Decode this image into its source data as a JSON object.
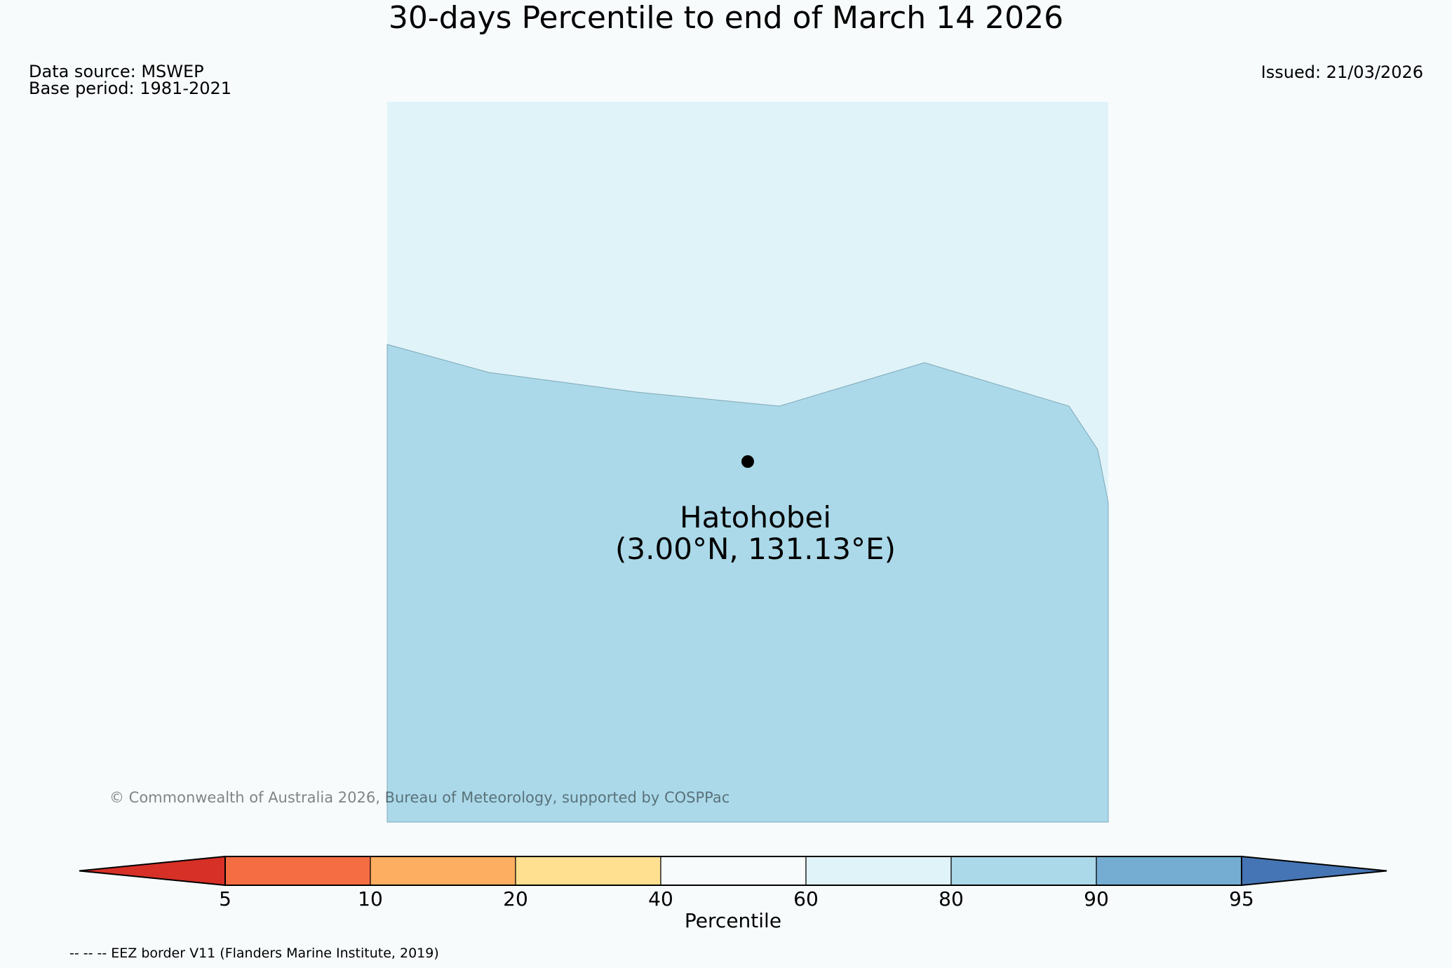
{
  "title": "30-days Percentile to end of March 14 2026",
  "meta": {
    "data_source": "Data source: MSWEP",
    "base_period": "Base period: 1981-2021",
    "issued": "Issued: 21/03/2026"
  },
  "map": {
    "station_name": "Hatohobei",
    "station_coords": "(3.00°N, 131.13°E)",
    "colors": {
      "upper_region": "#e0f3f8",
      "lower_region": "#abd9e9",
      "station_marker": "#000000"
    }
  },
  "copyright": "© Commonwealth of Australia 2026, Bureau of Meteorology, supported by COSPPac",
  "colorbar": {
    "label": "Percentile",
    "ticks": [
      "5",
      "10",
      "20",
      "40",
      "60",
      "80",
      "90",
      "95"
    ],
    "colors": [
      "#d73027",
      "#f46d43",
      "#fdae61",
      "#fee090",
      "#f7fbfc",
      "#e0f3f8",
      "#abd9e9",
      "#74add1",
      "#4575b4"
    ]
  },
  "footnote": "-- -- -- EEZ border V11 (Flanders Marine Institute, 2019)"
}
